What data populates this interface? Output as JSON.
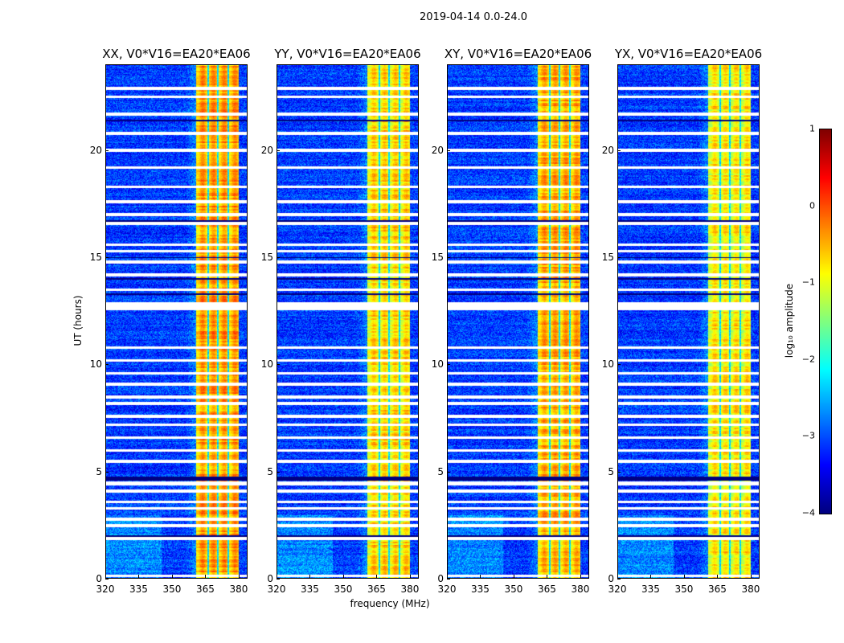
{
  "title": "2019-04-14 0.0-24.0",
  "chart_data": [
    {
      "type": "heatmap",
      "title": "XX, V0*V16=EA20*EA06",
      "xlabel": "frequency (MHz)",
      "ylabel": "UT (hours)",
      "xlim": [
        320,
        384
      ],
      "ylim": [
        0,
        24
      ],
      "xticks": [
        "320",
        "335",
        "350",
        "365",
        "380"
      ],
      "yticks": [
        "0",
        "5",
        "10",
        "15",
        "20"
      ],
      "band_level": -0.5
    },
    {
      "type": "heatmap",
      "title": "YY, V0*V16=EA20*EA06",
      "xlabel": "frequency (MHz)",
      "ylabel": "",
      "xlim": [
        320,
        384
      ],
      "ylim": [
        0,
        24
      ],
      "xticks": [
        "320",
        "335",
        "350",
        "365",
        "380"
      ],
      "yticks": [
        "0",
        "5",
        "10",
        "15",
        "20"
      ],
      "band_level": -0.8
    },
    {
      "type": "heatmap",
      "title": "XY, V0*V16=EA20*EA06",
      "xlabel": "frequency (MHz)",
      "ylabel": "",
      "xlim": [
        320,
        384
      ],
      "ylim": [
        0,
        24
      ],
      "xticks": [
        "320",
        "335",
        "350",
        "365",
        "380"
      ],
      "yticks": [
        "0",
        "5",
        "10",
        "15",
        "20"
      ],
      "band_level": -0.6
    },
    {
      "type": "heatmap",
      "title": "YX, V0*V16=EA20*EA06",
      "xlabel": "frequency (MHz)",
      "ylabel": "",
      "xlim": [
        320,
        384
      ],
      "ylim": [
        0,
        24
      ],
      "xticks": [
        "320",
        "335",
        "350",
        "365",
        "380"
      ],
      "yticks": [
        "0",
        "5",
        "10",
        "15",
        "20"
      ],
      "band_level": -0.9
    }
  ],
  "shared": {
    "background_level": -3.1,
    "band_range_mhz": [
      360.5,
      380
    ],
    "notch_freqs_mhz": [
      366,
      370.5,
      375
    ],
    "flagged_hours": [
      0.15,
      1.9,
      2.5,
      2.8,
      3.3,
      3.6,
      4.1,
      4.45,
      5.5,
      6.0,
      6.6,
      7.2,
      7.6,
      8.2,
      8.5,
      9.1,
      9.6,
      10.2,
      10.8,
      12.65,
      12.8,
      13.5,
      14.2,
      14.8,
      15.3,
      15.6,
      16.6,
      17.0,
      17.6,
      18.3,
      19.2,
      20.0,
      20.8,
      21.7,
      22.5,
      22.9
    ],
    "zero_hours": [
      2.0,
      4.7,
      13.3,
      14.0,
      15.0,
      16.7,
      21.4
    ]
  },
  "colorbar": {
    "label": "log₁₀ amplitude",
    "min": -4,
    "max": 1,
    "ticks": [
      "1",
      "0",
      "−1",
      "−2",
      "−3",
      "−4"
    ]
  },
  "xlabel": "frequency (MHz)",
  "ylabel": "UT (hours)"
}
